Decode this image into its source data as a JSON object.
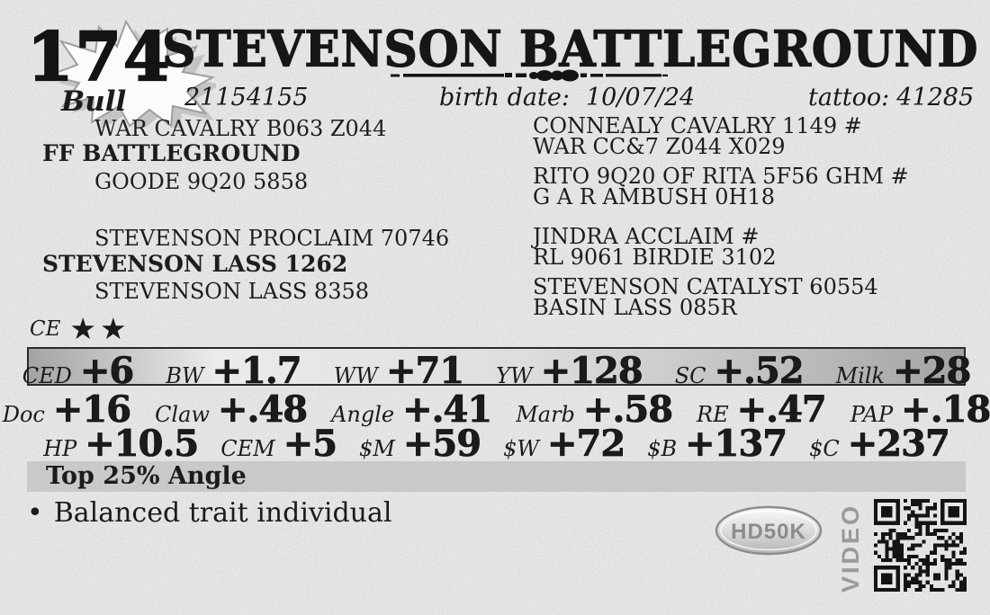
{
  "lot": {
    "number": "174",
    "sex": "Bull"
  },
  "header": {
    "title": "STEVENSON BATTLEGROUND 41285",
    "reg_number": "21154155",
    "birth_date_label": "birth date:",
    "birth_date": "10/07/24",
    "tattoo_label": "tattoo:",
    "tattoo": "41285"
  },
  "pedigree": {
    "sire_block": {
      "top": "WAR CAVALRY B063 Z044",
      "main": "FF BATTLEGROUND",
      "bottom": "GOODE 9Q20 5858"
    },
    "sire_grandparents": [
      "CONNEALY CAVALRY 1149 #",
      "WAR CC&7 Z044 X029",
      "RITO 9Q20 OF RITA 5F56 GHM #",
      "G A R AMBUSH 0H18"
    ],
    "dam_block": {
      "top": "STEVENSON PROCLAIM 70746",
      "main": "STEVENSON LASS 1262",
      "bottom": "STEVENSON LASS 8358"
    },
    "dam_grandparents": [
      "JINDRA ACCLAIM #",
      "RL 9061 BIRDIE 3102",
      "STEVENSON CATALYST 60554",
      "BASIN LASS 085R"
    ]
  },
  "ce": {
    "label": "CE",
    "stars": "★★"
  },
  "epd": {
    "rows": [
      [
        {
          "label": "CED",
          "value": "+6"
        },
        {
          "label": "BW",
          "value": "+1.7"
        },
        {
          "label": "WW",
          "value": "+71"
        },
        {
          "label": "YW",
          "value": "+128"
        },
        {
          "label": "SC",
          "value": "+.52"
        },
        {
          "label": "Milk",
          "value": "+28"
        }
      ],
      [
        {
          "label": "Doc",
          "value": "+16"
        },
        {
          "label": "Claw",
          "value": "+.48"
        },
        {
          "label": "Angle",
          "value": "+.41"
        },
        {
          "label": "Marb",
          "value": "+.58"
        },
        {
          "label": "RE",
          "value": "+.47"
        },
        {
          "label": "PAP",
          "value": "+.18"
        }
      ],
      [
        {
          "label": "HP",
          "value": "+10.5"
        },
        {
          "label": "CEM",
          "value": "+5"
        },
        {
          "label": "$M",
          "value": "+59"
        },
        {
          "label": "$W",
          "value": "+72"
        },
        {
          "label": "$B",
          "value": "+137"
        },
        {
          "label": "$C",
          "value": "+237"
        }
      ]
    ]
  },
  "highlight": "Top 25% Angle",
  "notes": {
    "bullet": "•",
    "text": "Balanced trait individual"
  },
  "badges": {
    "hd50k": "HD50K",
    "video": "VIDEO"
  },
  "colors": {
    "page_bg": "#e9e9e9",
    "text": "#1b1b1b",
    "highlight_bar": "#c9c9c9",
    "badge_gray": "#9a9a9a",
    "epd_box_border": "#2a2a2a"
  }
}
